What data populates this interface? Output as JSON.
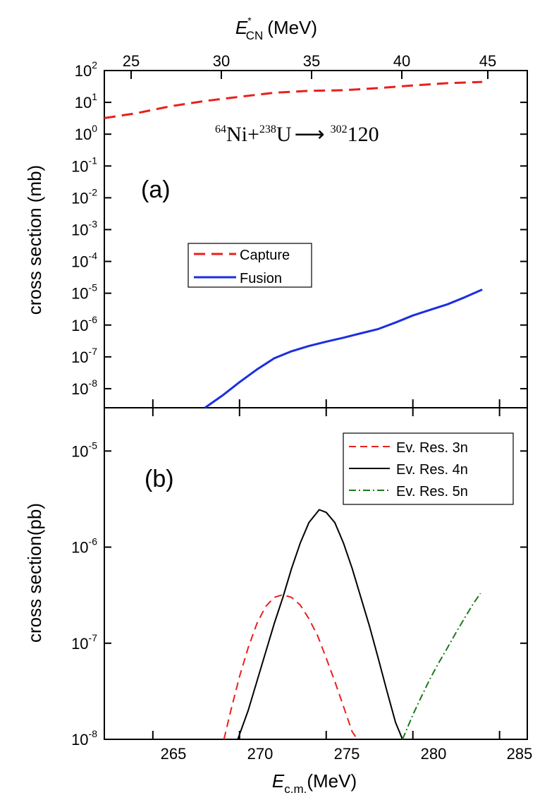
{
  "figure": {
    "top_axis_label": {
      "main": "E",
      "sup": "*",
      "sub": "CN",
      "unit": "(MeV)"
    },
    "bottom_axis_label": {
      "main": "E",
      "sub": "c.m.",
      "unit": "(MeV)"
    },
    "top_ticks": [
      "25",
      "30",
      "35",
      "40",
      "45"
    ],
    "bottom_ticks": [
      "265",
      "270",
      "275",
      "280",
      "285"
    ]
  },
  "chart_data": [
    {
      "type": "line",
      "panel_label": "(a)",
      "ylabel": "cross section (mb)",
      "yscale": "log",
      "ylim_exp": [
        -8.6,
        2
      ],
      "xlim": [
        262.2,
        286.6
      ],
      "y_ticks": [
        {
          "exp": "2"
        },
        {
          "exp": "1"
        },
        {
          "exp": "0"
        },
        {
          "exp": "-1"
        },
        {
          "exp": "-2"
        },
        {
          "exp": "-3"
        },
        {
          "exp": "-4"
        },
        {
          "exp": "-5"
        },
        {
          "exp": "-6"
        },
        {
          "exp": "-7"
        },
        {
          "exp": "-8"
        }
      ],
      "reaction": {
        "a1": "64",
        "s1": "Ni+",
        "a2": "238",
        "s2": "U",
        "arrow": "⟶",
        "a3": "302",
        "s3": "120"
      },
      "legend": [
        "Capture",
        "Fusion"
      ],
      "series": [
        {
          "name": "Capture",
          "color": "#e8201c",
          "dash": "dashed",
          "x": [
            262.2,
            264,
            266,
            268,
            270,
            272,
            274,
            276,
            278,
            280,
            282,
            284
          ],
          "y": [
            3.2,
            4.5,
            7.5,
            11,
            15,
            20,
            23,
            24,
            28,
            34,
            40,
            44
          ]
        },
        {
          "name": "Fusion",
          "color": "#1c2ee0",
          "dash": "solid",
          "x": [
            268,
            269,
            270,
            271,
            272,
            273,
            274,
            275,
            276,
            277,
            278,
            279,
            280,
            281,
            282,
            283,
            284
          ],
          "y": [
            2.5e-09,
            6e-09,
            1.6e-08,
            4e-08,
            9e-08,
            1.5e-07,
            2.2e-07,
            3e-07,
            4e-07,
            5.5e-07,
            7.5e-07,
            1.2e-06,
            2e-06,
            3e-06,
            4.5e-06,
            7.5e-06,
            1.3e-05
          ]
        }
      ]
    },
    {
      "type": "line",
      "panel_label": "(b)",
      "ylabel": "cross section(pb)",
      "yscale": "log",
      "ylim_exp": [
        -8,
        -4.55
      ],
      "xlim": [
        262.2,
        286.6
      ],
      "y_ticks": [
        {
          "exp": "-5"
        },
        {
          "exp": "-6"
        },
        {
          "exp": "-7"
        },
        {
          "exp": "-8"
        }
      ],
      "legend": [
        "Ev. Res. 3n",
        "Ev. Res. 4n",
        "Ev. Res. 5n"
      ],
      "series": [
        {
          "name": "Ev. Res. 3n",
          "color": "#e8201c",
          "dash": "dashed",
          "x": [
            269.1,
            269.5,
            270,
            270.5,
            271,
            271.5,
            272,
            272.5,
            273,
            273.5,
            274,
            274.5,
            275,
            275.5,
            276,
            276.5,
            276.8
          ],
          "y": [
            1e-08,
            2e-08,
            4.5e-08,
            9e-08,
            1.6e-07,
            2.4e-07,
            3e-07,
            3.2e-07,
            3e-07,
            2.5e-07,
            1.8e-07,
            1.2e-07,
            7e-08,
            4e-08,
            2.2e-08,
            1.2e-08,
            1e-08
          ]
        },
        {
          "name": "Ev. Res. 4n",
          "color": "#000000",
          "dash": "solid",
          "x": [
            269.9,
            270.5,
            271,
            271.5,
            272,
            272.5,
            273,
            273.5,
            274,
            274.6,
            275,
            275.5,
            276,
            276.5,
            277,
            277.5,
            278,
            278.5,
            279,
            279.4
          ],
          "y": [
            1e-08,
            2e-08,
            4e-08,
            8e-08,
            1.6e-07,
            3e-07,
            6e-07,
            1.1e-06,
            1.8e-06,
            2.45e-06,
            2.3e-06,
            1.8e-06,
            1.1e-06,
            6e-07,
            3e-07,
            1.5e-07,
            7e-08,
            3.2e-08,
            1.5e-08,
            1e-08
          ]
        },
        {
          "name": "Ev. Res. 5n",
          "color": "#1a7a1a",
          "dash": "dashdot",
          "x": [
            279.4,
            280,
            280.5,
            281,
            281.5,
            282,
            282.5,
            283,
            283.5,
            283.9
          ],
          "y": [
            1e-08,
            1.8e-08,
            2.8e-08,
            4.3e-08,
            6.3e-08,
            9e-08,
            1.3e-07,
            1.85e-07,
            2.6e-07,
            3.3e-07
          ]
        }
      ]
    }
  ]
}
